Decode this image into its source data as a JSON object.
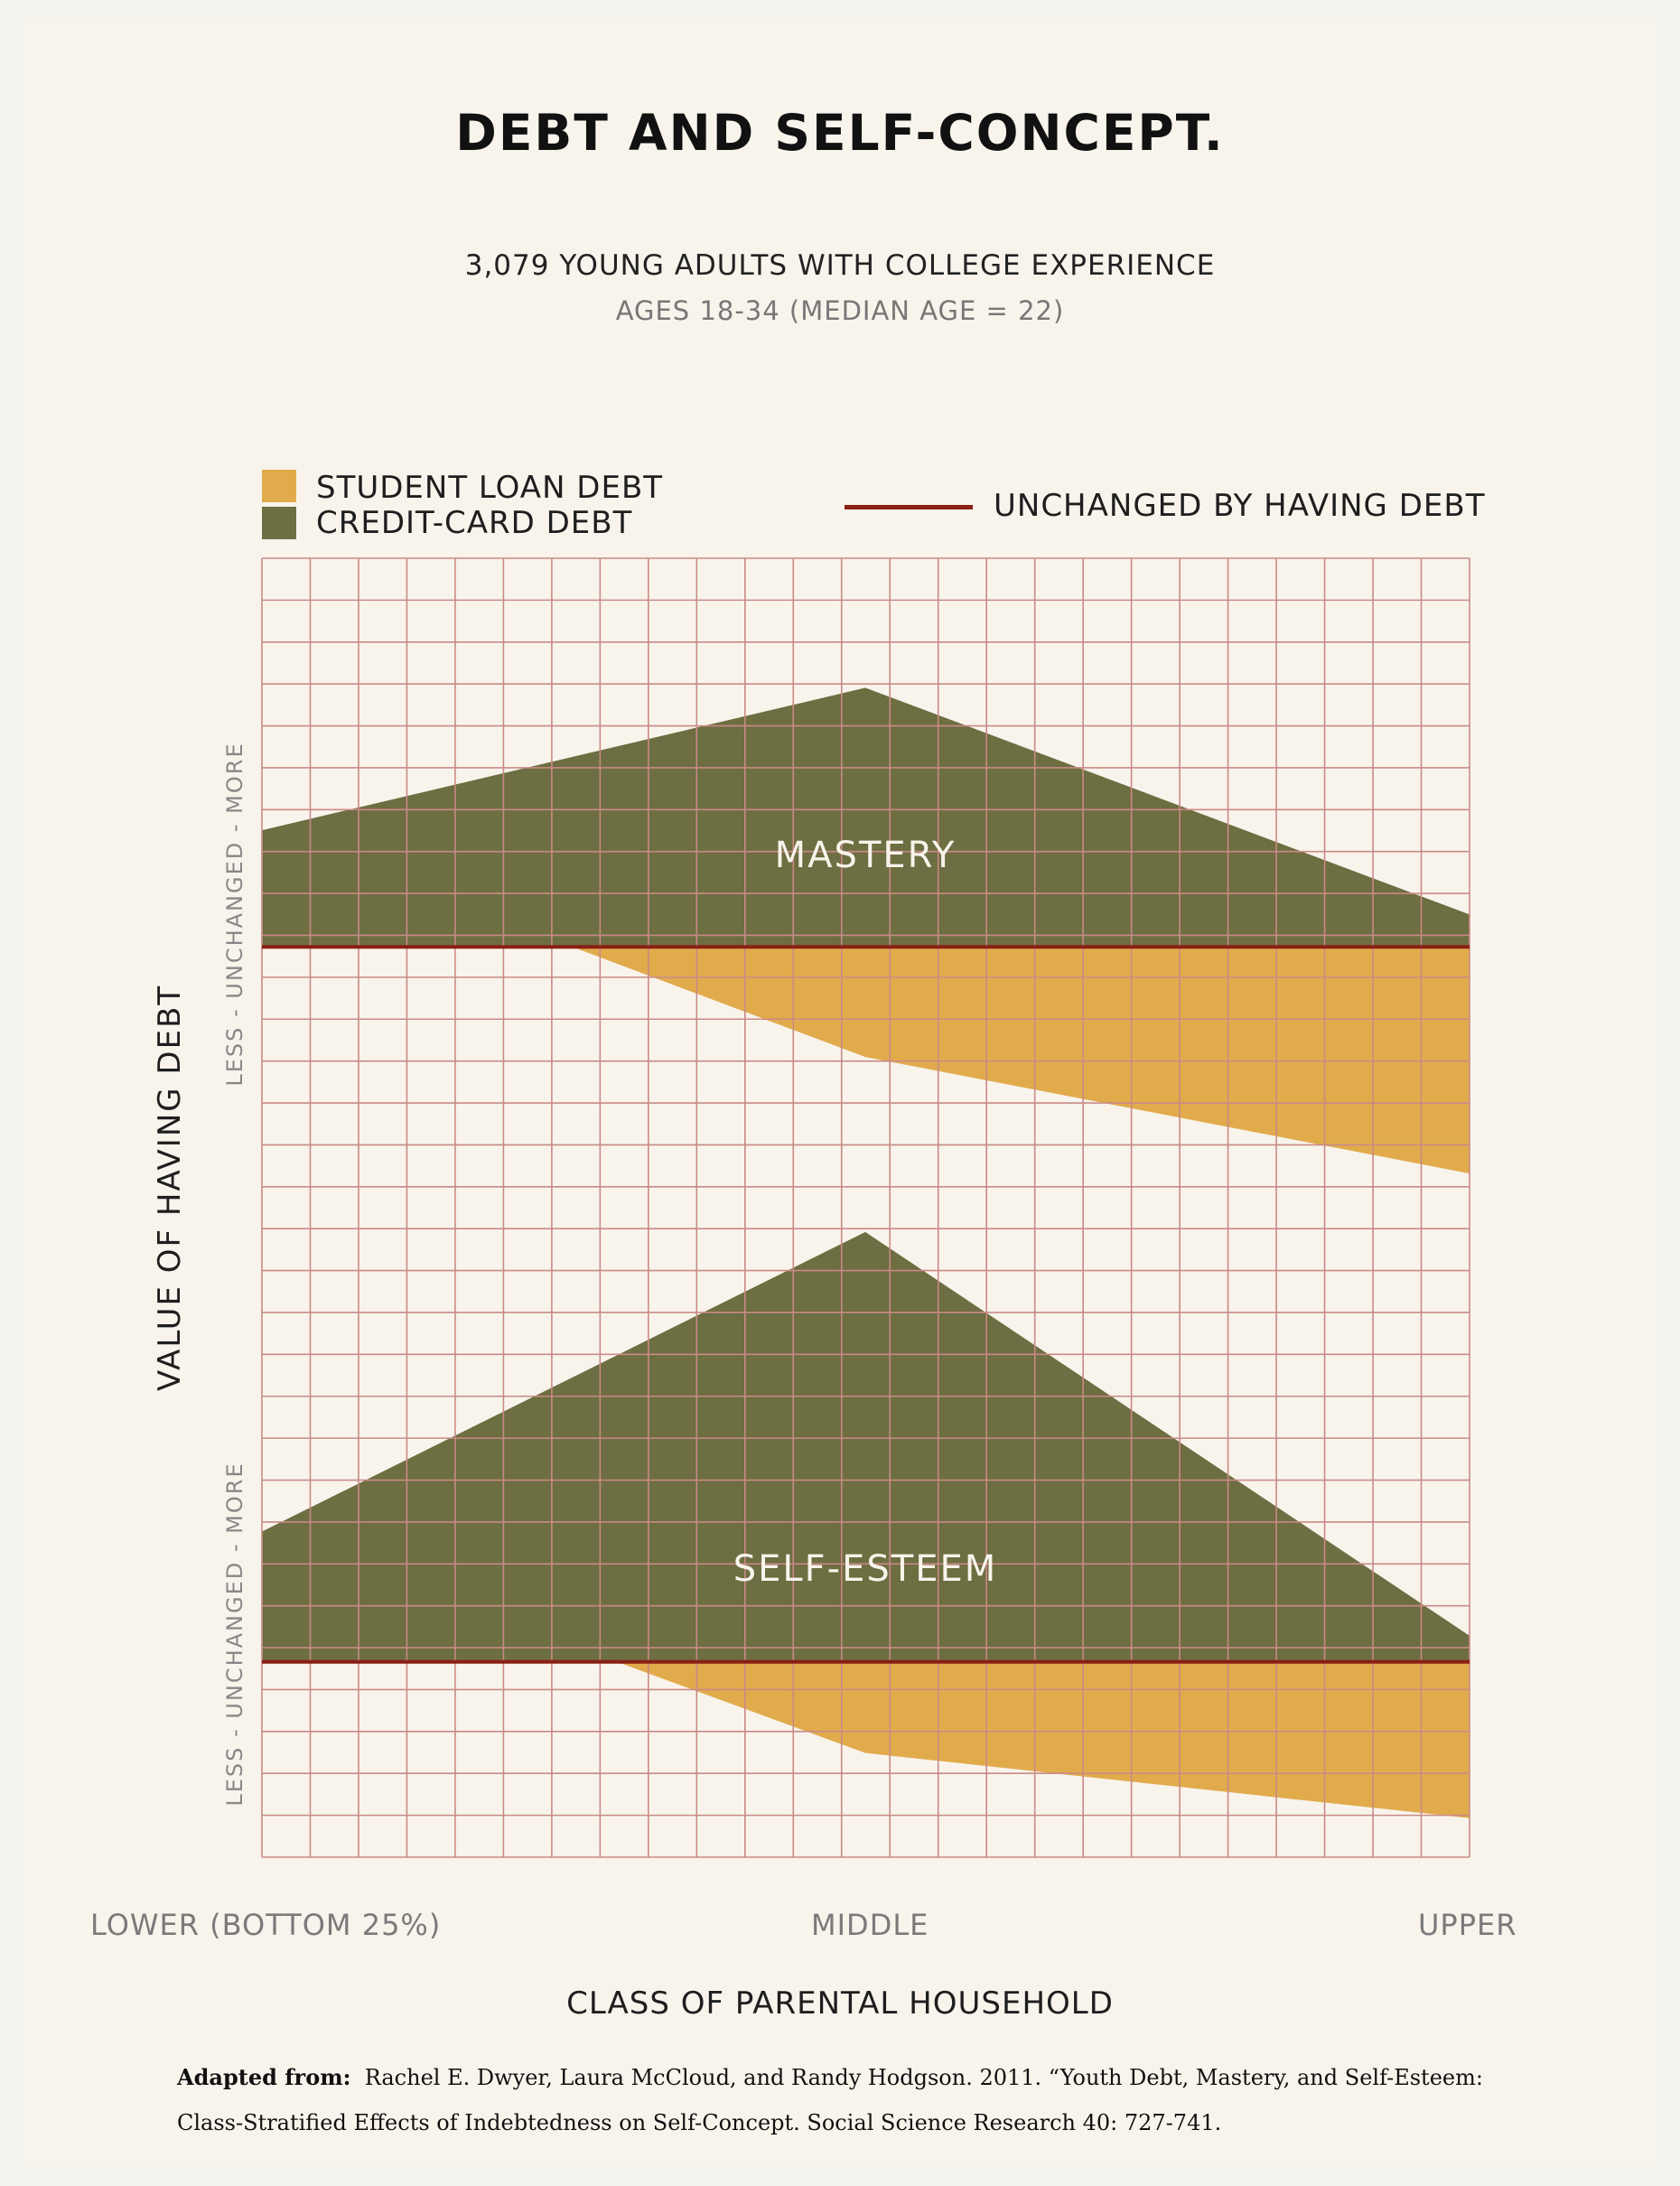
{
  "colors": {
    "student_loan": "#e1ab4c",
    "credit_card": "#6d6e41",
    "baseline": "#8a1f14",
    "grid": "#c98a86",
    "background": "#f8f4ec"
  },
  "title": "DEBT AND SELF-CONCEPT.",
  "subtitle": "3,079 YOUNG ADULTS WITH COLLEGE EXPERIENCE",
  "subtitle2": "AGES 18-34 (MEDIAN AGE = 22)",
  "legend": {
    "student_loan": "STUDENT LOAN DEBT",
    "credit_card": "CREDIT-CARD DEBT",
    "baseline": "UNCHANGED BY HAVING DEBT"
  },
  "ylabel": "VALUE OF HAVING DEBT",
  "axis_range_label": "LESS  -  UNCHANGED  -  MORE",
  "xlabel": "CLASS OF PARENTAL HOUSEHOLD",
  "citation": {
    "prefix": "Adapted from:",
    "text": "Rachel E. Dwyer, Laura McCloud, and Randy Hodgson. 2011. “Youth Debt, Mastery, and Self-Esteem:  Class-Stratified Effects of Indebtedness on Self-Concept. Social Science Research 40: 727-741."
  },
  "chart_data": {
    "type": "area",
    "x": [
      "LOWER (BOTTOM 25%)",
      "MIDDLE",
      "UPPER"
    ],
    "y_scale": "relative value of having debt (0 = unchanged, positive = more, negative = less)",
    "panels": [
      {
        "label": "MASTERY",
        "ylim": [
          -4,
          6
        ],
        "series": [
          {
            "name": "STUDENT LOAN DEBT",
            "values": [
              1.8,
              -1.7,
              -3.5
            ]
          },
          {
            "name": "CREDIT-CARD DEBT",
            "values": [
              1.8,
              4.0,
              0.5
            ]
          }
        ]
      },
      {
        "label": "SELF-ESTEEM",
        "ylim": [
          -3,
          7
        ],
        "series": [
          {
            "name": "STUDENT LOAN DEBT",
            "values": [
              2.0,
              -1.4,
              -2.4
            ]
          },
          {
            "name": "CREDIT-CARD DEBT",
            "values": [
              2.0,
              6.6,
              0.4
            ]
          }
        ]
      }
    ],
    "grid": true,
    "legend_position": "top"
  }
}
